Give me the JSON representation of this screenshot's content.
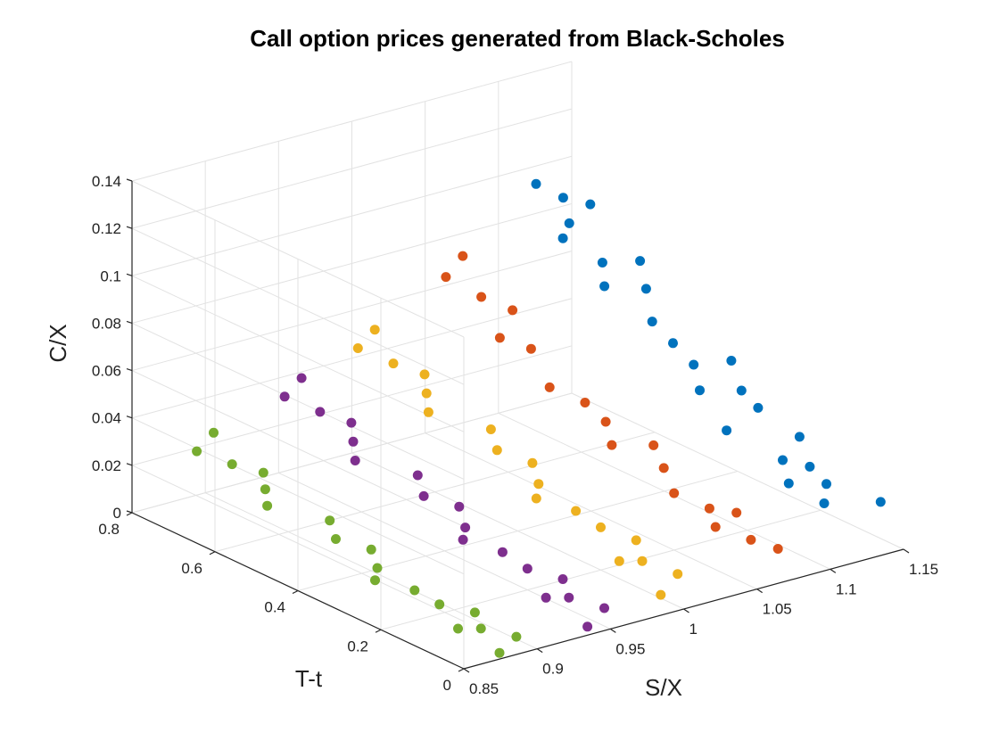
{
  "chart_data": {
    "type": "scatter",
    "view": "3d",
    "title": "Call option prices generated from Black-Scholes",
    "xlabel": "S/X",
    "ylabel": "T-t",
    "zlabel": "C/X",
    "xlim": [
      0.85,
      1.15
    ],
    "ylim": [
      0,
      0.8
    ],
    "zlim": [
      0,
      0.14
    ],
    "x_ticks": [
      0.85,
      0.9,
      0.95,
      1,
      1.05,
      1.1,
      1.15
    ],
    "x_tick_labels": [
      "0.85",
      "0.9",
      "0.95",
      "1",
      "1.05",
      "1.1",
      "1.15"
    ],
    "y_ticks": [
      0,
      0.2,
      0.4,
      0.6,
      0.8
    ],
    "y_tick_labels": [
      "0",
      "0.2",
      "0.4",
      "0.6",
      "0.8"
    ],
    "z_ticks": [
      0,
      0.02,
      0.04,
      0.06,
      0.08,
      0.1,
      0.12,
      0.14
    ],
    "z_tick_labels": [
      "0",
      "0.02",
      "0.04",
      "0.06",
      "0.08",
      "0.1",
      "0.12",
      "0.14"
    ],
    "grid": true,
    "series": [
      {
        "color": "#0072bd",
        "points": [
          [
            1.1,
            0.1,
            0.028
          ],
          [
            1.11,
            0.15,
            0.032
          ],
          [
            1.12,
            0.12,
            0.03
          ],
          [
            1.13,
            0.18,
            0.036
          ],
          [
            1.12,
            0.08,
            0.026
          ],
          [
            1.11,
            0.35,
            0.045
          ],
          [
            1.12,
            0.4,
            0.05
          ],
          [
            1.13,
            0.32,
            0.044
          ],
          [
            1.14,
            0.38,
            0.05
          ],
          [
            1.12,
            0.45,
            0.055
          ],
          [
            1.11,
            0.58,
            0.07
          ],
          [
            1.12,
            0.62,
            0.075
          ],
          [
            1.13,
            0.55,
            0.068
          ],
          [
            1.14,
            0.6,
            0.074
          ],
          [
            1.12,
            0.7,
            0.085
          ],
          [
            1.13,
            0.75,
            0.09
          ],
          [
            1.11,
            0.68,
            0.082
          ],
          [
            1.12,
            0.78,
            0.095
          ],
          [
            1.14,
            0.72,
            0.088
          ],
          [
            1.12,
            0.5,
            0.06
          ],
          [
            1.1,
            0.25,
            0.038
          ],
          [
            1.13,
            0.28,
            0.04
          ],
          [
            1.11,
            0.05,
            0.022
          ],
          [
            1.14,
            0.02,
            0.02
          ]
        ]
      },
      {
        "color": "#d95319",
        "points": [
          [
            1.05,
            0.1,
            0.018
          ],
          [
            1.06,
            0.15,
            0.02
          ],
          [
            1.07,
            0.12,
            0.019
          ],
          [
            1.05,
            0.2,
            0.024
          ],
          [
            1.06,
            0.05,
            0.015
          ],
          [
            1.05,
            0.35,
            0.032
          ],
          [
            1.06,
            0.4,
            0.036
          ],
          [
            1.07,
            0.32,
            0.031
          ],
          [
            1.06,
            0.45,
            0.04
          ],
          [
            1.05,
            0.5,
            0.044
          ],
          [
            1.05,
            0.62,
            0.055
          ],
          [
            1.06,
            0.58,
            0.052
          ],
          [
            1.07,
            0.66,
            0.06
          ],
          [
            1.06,
            0.7,
            0.064
          ],
          [
            1.05,
            0.75,
            0.07
          ],
          [
            1.07,
            0.78,
            0.073
          ],
          [
            1.06,
            0.26,
            0.028
          ],
          [
            1.07,
            0.02,
            0.012
          ]
        ]
      },
      {
        "color": "#edb120",
        "points": [
          [
            1,
            0.1,
            0.012
          ],
          [
            1.01,
            0.15,
            0.015
          ],
          [
            0.99,
            0.12,
            0.012
          ],
          [
            1,
            0.2,
            0.018
          ],
          [
            1.01,
            0.05,
            0.009
          ],
          [
            1,
            0.35,
            0.024
          ],
          [
            1.01,
            0.4,
            0.027
          ],
          [
            0.99,
            0.32,
            0.022
          ],
          [
            1,
            0.45,
            0.03
          ],
          [
            1.01,
            0.5,
            0.033
          ],
          [
            1,
            0.62,
            0.04
          ],
          [
            0.99,
            0.58,
            0.037
          ],
          [
            1.01,
            0.66,
            0.043
          ],
          [
            1,
            0.7,
            0.046
          ],
          [
            0.99,
            0.75,
            0.05
          ],
          [
            1.01,
            0.78,
            0.052
          ],
          [
            1,
            0.26,
            0.02
          ],
          [
            0.99,
            0.02,
            0.006
          ]
        ]
      },
      {
        "color": "#7e2f8e",
        "points": [
          [
            0.95,
            0.1,
            0.005
          ],
          [
            0.96,
            0.15,
            0.007
          ],
          [
            0.94,
            0.12,
            0.005
          ],
          [
            0.95,
            0.2,
            0.009
          ],
          [
            0.96,
            0.05,
            0.003
          ],
          [
            0.95,
            0.35,
            0.014
          ],
          [
            0.96,
            0.4,
            0.017
          ],
          [
            0.94,
            0.32,
            0.013
          ],
          [
            0.95,
            0.45,
            0.019
          ],
          [
            0.96,
            0.5,
            0.022
          ],
          [
            0.95,
            0.62,
            0.028
          ],
          [
            0.94,
            0.58,
            0.025
          ],
          [
            0.96,
            0.66,
            0.031
          ],
          [
            0.95,
            0.7,
            0.034
          ],
          [
            0.94,
            0.75,
            0.038
          ],
          [
            0.96,
            0.78,
            0.04
          ],
          [
            0.95,
            0.26,
            0.011
          ],
          [
            0.94,
            0.02,
            0.001
          ]
        ]
      },
      {
        "color": "#77ac30",
        "points": [
          [
            0.89,
            0.1,
            0.002
          ],
          [
            0.9,
            0.15,
            0.003
          ],
          [
            0.88,
            0.12,
            0.002
          ],
          [
            0.89,
            0.2,
            0.004
          ],
          [
            0.9,
            0.05,
            0.001
          ],
          [
            0.89,
            0.35,
            0.007
          ],
          [
            0.9,
            0.4,
            0.009
          ],
          [
            0.88,
            0.32,
            0.006
          ],
          [
            0.89,
            0.45,
            0.011
          ],
          [
            0.9,
            0.5,
            0.013
          ],
          [
            0.89,
            0.62,
            0.018
          ],
          [
            0.88,
            0.58,
            0.016
          ],
          [
            0.9,
            0.66,
            0.02
          ],
          [
            0.89,
            0.7,
            0.022
          ],
          [
            0.88,
            0.75,
            0.025
          ],
          [
            0.9,
            0.78,
            0.027
          ],
          [
            0.89,
            0.26,
            0.005
          ],
          [
            0.88,
            0.02,
            0.0
          ]
        ]
      }
    ]
  }
}
